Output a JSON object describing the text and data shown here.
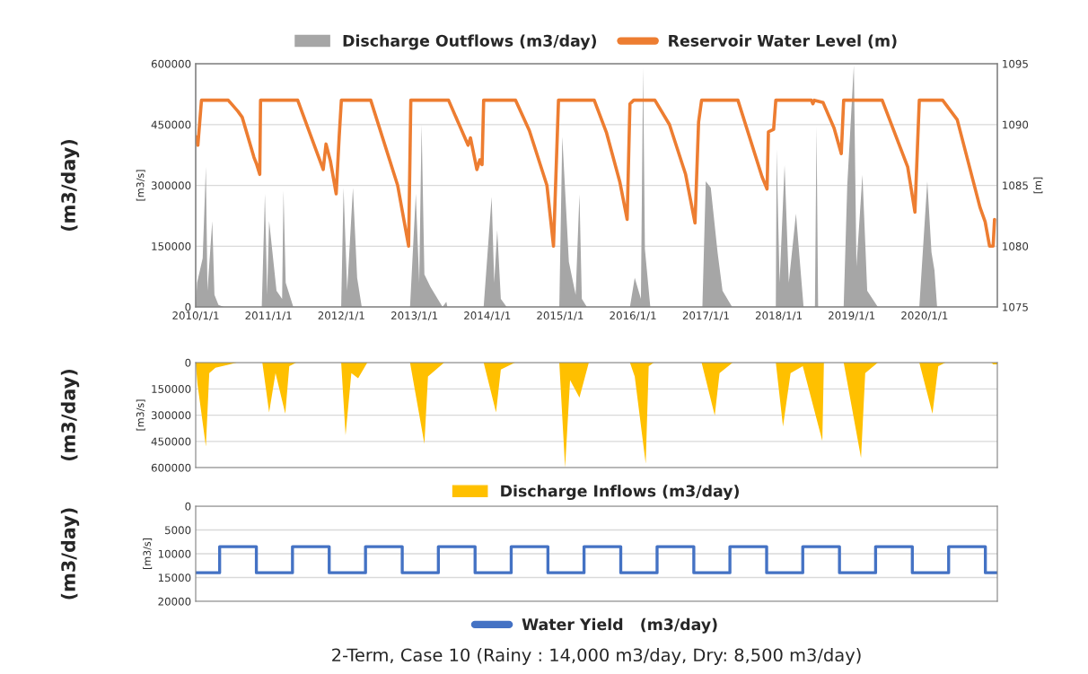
{
  "chart_data": [
    {
      "type": "line",
      "xlim": [
        "2010-01-01",
        "2020-12-31"
      ],
      "xticks": [
        {
          "value": "2010-01-01",
          "label": "2010/1/1"
        },
        {
          "value": "2011-01-01",
          "label": "2011/1/1"
        },
        {
          "value": "2012-01-01",
          "label": "2012/1/1"
        },
        {
          "value": "2013-01-01",
          "label": "2013/1/1"
        },
        {
          "value": "2014-01-01",
          "label": "2014/1/1"
        },
        {
          "value": "2015-01-01",
          "label": "2015/1/1"
        },
        {
          "value": "2016-01-01",
          "label": "2016/1/1"
        },
        {
          "value": "2017-01-01",
          "label": "2017/1/1"
        },
        {
          "value": "2018-01-01",
          "label": "2018/1/1"
        },
        {
          "value": "2019-01-01",
          "label": "2019/1/1"
        },
        {
          "value": "2020-01-01",
          "label": "2020/1/1"
        }
      ],
      "ylim": [
        0,
        600000
      ],
      "yticks": [
        0,
        150000,
        300000,
        450000,
        600000
      ],
      "y2lim": [
        1075,
        1095
      ],
      "y2ticks": [
        1075,
        1080,
        1085,
        1090,
        1095
      ],
      "ylabel": "[m3/s]",
      "y2label": "[m]",
      "grid": "y",
      "legend": "top",
      "annotations": [
        "(m3/day)"
      ],
      "series": [
        {
          "name": "Discharge Outflows (m3/day)",
          "type": "area",
          "color": "#a6a6a6",
          "x": [
            "2010-01-01",
            "2010-01-08",
            "2010-02-05",
            "2010-02-21",
            "2010-03-01",
            "2010-03-25",
            "2010-04-05",
            "2010-04-25",
            "2010-05-22",
            "2010-11-28",
            "2010-12-14",
            "2010-12-25",
            "2011-01-04",
            "2011-02-10",
            "2011-03-10",
            "2011-03-17",
            "2011-03-28",
            "2011-05-05",
            "2011-12-31",
            "2012-01-12",
            "2012-01-30",
            "2012-02-28",
            "2012-03-20",
            "2012-04-12",
            "2012-12-10",
            "2013-01-08",
            "2013-01-25",
            "2013-02-06",
            "2013-02-20",
            "2013-03-22",
            "2013-05-22",
            "2013-06-10",
            "2013-06-15",
            "2013-12-14",
            "2014-01-23",
            "2014-02-05",
            "2014-02-20",
            "2014-03-10",
            "2014-04-08",
            "2014-12-28",
            "2015-01-12",
            "2015-02-14",
            "2015-03-20",
            "2015-04-08",
            "2015-04-20",
            "2015-05-15",
            "2015-12-17",
            "2016-01-10",
            "2016-02-10",
            "2016-02-21",
            "2016-03-01",
            "2016-03-28",
            "2016-12-14",
            "2016-12-31",
            "2017-01-25",
            "2017-02-28",
            "2017-03-25",
            "2017-05-12",
            "2017-12-17",
            "2017-12-21",
            "2018-01-05",
            "2018-01-30",
            "2018-02-20",
            "2018-03-28",
            "2018-05-05",
            "2018-07-01",
            "2018-07-09",
            "2018-07-17",
            "2018-11-22",
            "2018-12-10",
            "2019-01-12",
            "2019-01-25",
            "2019-02-24",
            "2019-03-20",
            "2019-05-12",
            "2019-12-06",
            "2020-01-15",
            "2020-02-05",
            "2020-02-20",
            "2020-03-04"
          ],
          "values": [
            0,
            60000,
            120000,
            346000,
            40000,
            212000,
            30000,
            5000,
            0,
            0,
            279000,
            30000,
            212000,
            40000,
            20000,
            287000,
            60000,
            0,
            0,
            294000,
            40000,
            294000,
            72000,
            0,
            0,
            279000,
            60000,
            450000,
            80000,
            50000,
            0,
            12600,
            0,
            0,
            272000,
            60000,
            190000,
            20000,
            0,
            0,
            420000,
            111000,
            30000,
            278000,
            20000,
            0,
            0,
            72000,
            20000,
            590000,
            143000,
            0,
            0,
            310000,
            294000,
            135000,
            40000,
            0,
            0,
            389000,
            60000,
            350000,
            60000,
            230000,
            0,
            0,
            445000,
            0,
            0,
            300000,
            596000,
            100000,
            326000,
            40000,
            0,
            0,
            310000,
            135000,
            90000,
            0
          ]
        },
        {
          "name": "Reservoir Water Level (m)",
          "type": "line",
          "axis": "y2",
          "color": "#ed7d31",
          "x": [
            "2010-01-01",
            "2010-01-12",
            "2010-01-30",
            "2010-06-13",
            "2010-07-31",
            "2010-08-22",
            "2010-10-20",
            "2010-11-03",
            "2010-11-18",
            "2010-11-22",
            "2011-05-27",
            "2011-10-02",
            "2011-10-16",
            "2011-11-07",
            "2011-12-06",
            "2011-12-21",
            "2012-01-01",
            "2012-05-27",
            "2012-10-09",
            "2012-12-03",
            "2012-12-14",
            "2013-06-21",
            "2013-09-27",
            "2013-10-09",
            "2013-11-10",
            "2013-11-25",
            "2013-12-06",
            "2013-12-14",
            "2014-05-23",
            "2014-07-31",
            "2014-10-27",
            "2014-11-29",
            "2014-12-24",
            "2015-06-21",
            "2015-08-22",
            "2015-10-27",
            "2015-12-03",
            "2015-12-17",
            "2016-01-05",
            "2016-04-20",
            "2016-07-02",
            "2016-09-21",
            "2016-11-07",
            "2016-11-25",
            "2016-12-10",
            "2017-06-10",
            "2017-10-09",
            "2017-11-03",
            "2017-11-10",
            "2017-12-06",
            "2017-12-17",
            "2018-06-13",
            "2018-06-21",
            "2018-06-28",
            "2018-08-11",
            "2018-10-05",
            "2018-11-10",
            "2018-11-22",
            "2019-06-03",
            "2019-10-09",
            "2019-11-14",
            "2019-12-06",
            "2020-04-01",
            "2020-06-13",
            "2020-10-05",
            "2020-10-31",
            "2020-11-22",
            "2020-12-10",
            "2020-12-17"
          ],
          "values": [
            1089,
            1088.3,
            1092,
            1092,
            1091.1,
            1090.6,
            1087.3,
            1086.7,
            1085.9,
            1092,
            1092,
            1086.3,
            1088.4,
            1087,
            1084.3,
            1089,
            1092,
            1092,
            1085,
            1080,
            1092,
            1092,
            1088.3,
            1088.9,
            1086.3,
            1087.1,
            1086.7,
            1092,
            1092,
            1089.5,
            1085,
            1080,
            1092,
            1092,
            1089.3,
            1085.3,
            1082.2,
            1091.7,
            1092,
            1092,
            1090,
            1085.9,
            1081.9,
            1090.2,
            1092,
            1092,
            1085.7,
            1084.7,
            1089.4,
            1089.6,
            1092,
            1092,
            1091.7,
            1092,
            1091.8,
            1089.7,
            1087.6,
            1092,
            1092,
            1086.5,
            1082.8,
            1092,
            1092,
            1090.4,
            1083.2,
            1082,
            1080,
            1080,
            1082.2
          ]
        }
      ]
    },
    {
      "type": "area",
      "xlim": [
        "2010-01-01",
        "2020-12-31"
      ],
      "tick_labels": "y",
      "ylim": [
        600000,
        0
      ],
      "yticks": [
        0,
        150000,
        300000,
        450000,
        600000
      ],
      "ylabel": "[m3/s]",
      "grid": "y",
      "legend": "bottom",
      "annotations": [
        "(m3/day)"
      ],
      "series": [
        {
          "name": "Discharge Inflows (m3/day)",
          "color": "#ffc000",
          "x": [
            "2010-01-01",
            "2010-01-10",
            "2010-02-21",
            "2010-03-10",
            "2010-04-10",
            "2010-07-26",
            "2010-12-01",
            "2011-01-04",
            "2011-02-05",
            "2011-03-26",
            "2011-04-15",
            "2011-05-20",
            "2011-12-31",
            "2012-01-22",
            "2012-02-20",
            "2012-03-25",
            "2012-05-10",
            "2012-12-10",
            "2013-02-20",
            "2013-03-10",
            "2013-05-30",
            "2013-12-14",
            "2014-02-14",
            "2014-03-10",
            "2014-05-20",
            "2014-12-28",
            "2015-01-26",
            "2015-02-20",
            "2015-04-08",
            "2015-05-25",
            "2015-12-17",
            "2016-01-10",
            "2016-03-05",
            "2016-03-20",
            "2016-04-15",
            "2016-12-10",
            "2017-02-14",
            "2017-03-10",
            "2017-05-15",
            "2017-12-17",
            "2018-01-22",
            "2018-03-01",
            "2018-05-01",
            "2018-08-07",
            "2018-08-15",
            "2018-11-22",
            "2019-02-17",
            "2019-03-10",
            "2019-05-12",
            "2019-12-06",
            "2020-02-10",
            "2020-03-10",
            "2020-04-15",
            "2020-12-01",
            "2020-12-10",
            "2020-12-31"
          ],
          "values": [
            0,
            123000,
            480000,
            60000,
            30000,
            0,
            0,
            285000,
            60000,
            292000,
            20000,
            0,
            0,
            415000,
            60000,
            90000,
            0,
            0,
            464000,
            80000,
            0,
            0,
            285000,
            40000,
            0,
            0,
            600000,
            100000,
            200000,
            0,
            0,
            80000,
            577000,
            20000,
            0,
            0,
            302000,
            60000,
            0,
            0,
            366000,
            60000,
            20000,
            448000,
            0,
            0,
            545000,
            60000,
            0,
            0,
            292000,
            20000,
            0,
            0,
            10000,
            10000
          ]
        }
      ]
    },
    {
      "type": "step",
      "xlim": [
        "2010-01-01",
        "2020-12-31"
      ],
      "tick_labels": "y",
      "ylim": [
        20000,
        0
      ],
      "yticks": [
        0,
        5000,
        10000,
        15000,
        20000
      ],
      "ylabel": "[m3/s]",
      "grid": "y",
      "legend": "bottom",
      "annotations": [
        "(m3/day)",
        "2-Term, Case 10 (Rainy : 14,000 m3/day, Dry: 8,500 m3/day)"
      ],
      "series": [
        {
          "name": "Water Yield   (m3/day)",
          "color": "#4472c4",
          "x": [
            "2010-01-01",
            "2010-05-01",
            "2010-11-01",
            "2011-05-01",
            "2011-11-01",
            "2012-05-01",
            "2012-11-01",
            "2013-05-01",
            "2013-11-01",
            "2014-05-01",
            "2014-11-01",
            "2015-05-01",
            "2015-11-01",
            "2016-05-01",
            "2016-11-01",
            "2017-05-01",
            "2017-11-01",
            "2018-05-01",
            "2018-11-01",
            "2019-05-01",
            "2019-11-01",
            "2020-05-01",
            "2020-11-01",
            "2020-12-31"
          ],
          "values": [
            14000,
            8500,
            14000,
            8500,
            14000,
            8500,
            14000,
            8500,
            14000,
            8500,
            14000,
            8500,
            14000,
            8500,
            14000,
            8500,
            14000,
            8500,
            14000,
            8500,
            14000,
            8500,
            14000,
            14000
          ]
        }
      ]
    }
  ]
}
